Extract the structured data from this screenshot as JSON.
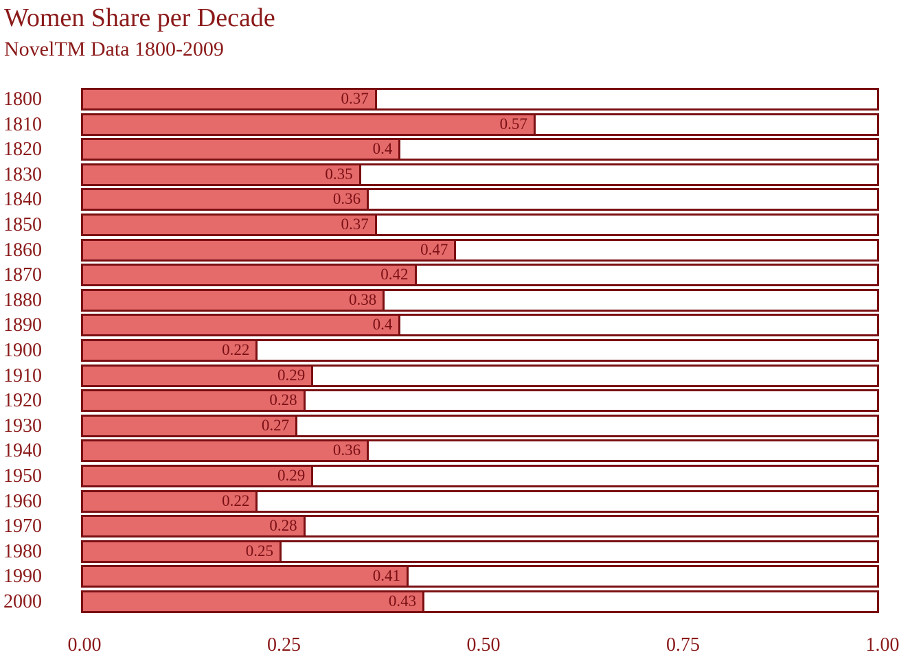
{
  "title": "Women Share per Decade",
  "subtitle": "NovelTM Data 1800-2009",
  "colors": {
    "bar_fill": "#e56a6a",
    "bar_border": "#7a0f12",
    "text": "#8b1a1a",
    "background": "#ffffff"
  },
  "chart_data": {
    "type": "bar",
    "orientation": "horizontal",
    "title": "Women Share per Decade",
    "subtitle": "NovelTM Data 1800-2009",
    "categories": [
      "1800",
      "1810",
      "1820",
      "1830",
      "1840",
      "1850",
      "1860",
      "1870",
      "1880",
      "1890",
      "1900",
      "1910",
      "1920",
      "1930",
      "1940",
      "1950",
      "1960",
      "1970",
      "1980",
      "1990",
      "2000"
    ],
    "values": [
      0.37,
      0.57,
      0.4,
      0.35,
      0.36,
      0.37,
      0.47,
      0.42,
      0.38,
      0.4,
      0.22,
      0.29,
      0.28,
      0.27,
      0.36,
      0.29,
      0.22,
      0.28,
      0.25,
      0.41,
      0.43
    ],
    "value_labels": [
      "0.37",
      "0.57",
      "0.4",
      "0.35",
      "0.36",
      "0.37",
      "0.47",
      "0.42",
      "0.38",
      "0.4",
      "0.22",
      "0.29",
      "0.28",
      "0.27",
      "0.36",
      "0.29",
      "0.22",
      "0.28",
      "0.25",
      "0.41",
      "0.43"
    ],
    "xlabel": "",
    "ylabel": "",
    "xlim": [
      0,
      1
    ],
    "x_ticks": [
      {
        "label": "0.00",
        "value": 0.0
      },
      {
        "label": "0.25",
        "value": 0.25
      },
      {
        "label": "0.50",
        "value": 0.5
      },
      {
        "label": "0.75",
        "value": 0.75
      },
      {
        "label": "1.00",
        "value": 1.0
      }
    ],
    "grid": false,
    "legend": "none"
  }
}
